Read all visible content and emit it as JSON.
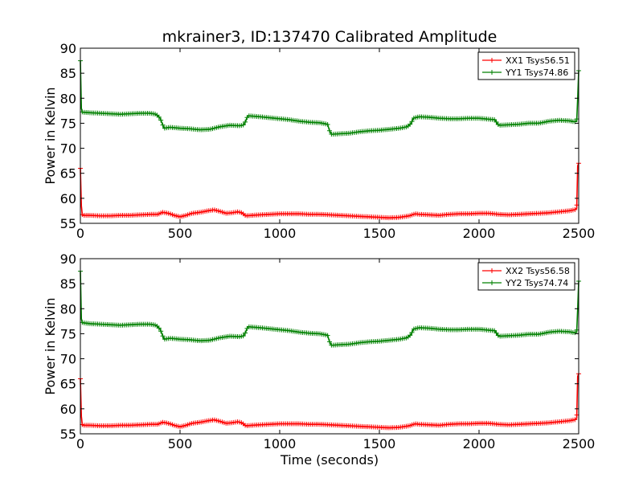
{
  "chart_data": [
    {
      "type": "line",
      "title": "mkrainer3, ID:137470 Calibrated Amplitude",
      "xlabel": "",
      "ylabel": "Power in Kelvin",
      "xlim": [
        0,
        2500
      ],
      "ylim": [
        55,
        90
      ],
      "xticks": [
        0,
        500,
        1000,
        1500,
        2000,
        2500
      ],
      "yticks": [
        55,
        60,
        65,
        70,
        75,
        80,
        85,
        90
      ],
      "legend_position": "top-right",
      "series": [
        {
          "name": "XX1 Tsys56.51",
          "color": "#ff0000",
          "marker": "plus",
          "x": [
            0,
            5,
            10,
            50,
            100,
            150,
            200,
            250,
            300,
            350,
            390,
            410,
            430,
            450,
            470,
            500,
            530,
            560,
            600,
            640,
            670,
            700,
            730,
            760,
            790,
            810,
            830,
            860,
            900,
            950,
            1000,
            1050,
            1100,
            1150,
            1200,
            1250,
            1300,
            1350,
            1400,
            1450,
            1500,
            1550,
            1600,
            1650,
            1680,
            1700,
            1750,
            1800,
            1850,
            1900,
            1950,
            2000,
            2050,
            2100,
            2150,
            2200,
            2250,
            2300,
            2350,
            2400,
            2450,
            2480,
            2490,
            2495,
            2500
          ],
          "y": [
            66.0,
            58.5,
            56.6,
            56.6,
            56.5,
            56.5,
            56.6,
            56.6,
            56.7,
            56.8,
            56.8,
            57.2,
            57.1,
            56.9,
            56.6,
            56.3,
            56.6,
            57.0,
            57.2,
            57.5,
            57.7,
            57.4,
            57.0,
            57.1,
            57.3,
            57.1,
            56.5,
            56.6,
            56.7,
            56.8,
            56.9,
            56.9,
            56.9,
            56.8,
            56.8,
            56.7,
            56.6,
            56.5,
            56.4,
            56.3,
            56.2,
            56.1,
            56.2,
            56.5,
            56.9,
            56.8,
            56.7,
            56.6,
            56.8,
            56.9,
            56.9,
            57.0,
            57.0,
            56.8,
            56.7,
            56.8,
            56.9,
            57.0,
            57.1,
            57.3,
            57.5,
            57.7,
            58.0,
            66.5,
            67.0
          ]
        },
        {
          "name": "YY1 Tsys74.86",
          "color": "#008000",
          "marker": "plus",
          "x": [
            0,
            5,
            10,
            50,
            100,
            150,
            200,
            250,
            300,
            350,
            380,
            400,
            410,
            420,
            450,
            500,
            550,
            600,
            650,
            700,
            750,
            800,
            820,
            830,
            840,
            900,
            950,
            1000,
            1050,
            1100,
            1150,
            1200,
            1240,
            1250,
            1260,
            1300,
            1350,
            1400,
            1450,
            1500,
            1550,
            1600,
            1640,
            1660,
            1670,
            1700,
            1750,
            1800,
            1850,
            1900,
            1950,
            2000,
            2050,
            2080,
            2090,
            2100,
            2150,
            2200,
            2250,
            2300,
            2350,
            2400,
            2450,
            2480,
            2490,
            2495,
            2500
          ],
          "y": [
            87.5,
            78.0,
            77.2,
            77.1,
            77.0,
            76.9,
            76.8,
            76.9,
            77.0,
            77.0,
            76.8,
            76.0,
            75.0,
            74.0,
            74.2,
            74.0,
            73.9,
            73.7,
            73.8,
            74.3,
            74.6,
            74.5,
            74.7,
            75.5,
            76.5,
            76.3,
            76.1,
            75.9,
            75.7,
            75.4,
            75.2,
            75.1,
            74.8,
            73.5,
            72.8,
            72.9,
            73.0,
            73.3,
            73.5,
            73.6,
            73.8,
            74.0,
            74.3,
            75.0,
            76.0,
            76.3,
            76.2,
            76.0,
            75.9,
            75.9,
            76.0,
            76.0,
            75.8,
            75.7,
            75.0,
            74.6,
            74.7,
            74.8,
            75.0,
            75.0,
            75.4,
            75.6,
            75.5,
            75.3,
            75.5,
            80.0,
            85.5
          ]
        }
      ]
    },
    {
      "type": "line",
      "title": "",
      "xlabel": "Time (seconds)",
      "ylabel": "Power in Kelvin",
      "xlim": [
        0,
        2500
      ],
      "ylim": [
        55,
        90
      ],
      "xticks": [
        0,
        500,
        1000,
        1500,
        2000,
        2500
      ],
      "yticks": [
        55,
        60,
        65,
        70,
        75,
        80,
        85,
        90
      ],
      "legend_position": "top-right",
      "series": [
        {
          "name": "XX2 Tsys56.58",
          "color": "#ff0000",
          "marker": "plus",
          "x": [
            0,
            5,
            10,
            50,
            100,
            150,
            200,
            250,
            300,
            350,
            390,
            410,
            430,
            450,
            470,
            500,
            530,
            560,
            600,
            640,
            670,
            700,
            730,
            760,
            790,
            810,
            830,
            860,
            900,
            950,
            1000,
            1050,
            1100,
            1150,
            1200,
            1250,
            1300,
            1350,
            1400,
            1450,
            1500,
            1550,
            1600,
            1650,
            1680,
            1700,
            1750,
            1800,
            1850,
            1900,
            1950,
            2000,
            2050,
            2100,
            2150,
            2200,
            2250,
            2300,
            2350,
            2400,
            2450,
            2480,
            2490,
            2495,
            2500
          ],
          "y": [
            66.0,
            58.5,
            56.7,
            56.7,
            56.6,
            56.6,
            56.7,
            56.7,
            56.8,
            56.9,
            56.9,
            57.3,
            57.2,
            57.0,
            56.7,
            56.4,
            56.7,
            57.1,
            57.3,
            57.6,
            57.8,
            57.5,
            57.1,
            57.2,
            57.4,
            57.2,
            56.6,
            56.7,
            56.8,
            56.9,
            57.0,
            57.0,
            57.0,
            56.9,
            56.9,
            56.8,
            56.7,
            56.6,
            56.5,
            56.4,
            56.3,
            56.2,
            56.3,
            56.6,
            57.0,
            56.9,
            56.8,
            56.7,
            56.9,
            57.0,
            57.0,
            57.1,
            57.1,
            56.9,
            56.8,
            56.9,
            57.0,
            57.1,
            57.2,
            57.4,
            57.6,
            57.8,
            58.1,
            66.5,
            67.0
          ]
        },
        {
          "name": "YY2 Tsys74.74",
          "color": "#008000",
          "marker": "plus",
          "x": [
            0,
            5,
            10,
            50,
            100,
            150,
            200,
            250,
            300,
            350,
            380,
            400,
            410,
            420,
            450,
            500,
            550,
            600,
            650,
            700,
            750,
            800,
            820,
            830,
            840,
            900,
            950,
            1000,
            1050,
            1100,
            1150,
            1200,
            1240,
            1250,
            1260,
            1300,
            1350,
            1400,
            1450,
            1500,
            1550,
            1600,
            1640,
            1660,
            1670,
            1700,
            1750,
            1800,
            1850,
            1900,
            1950,
            2000,
            2050,
            2080,
            2090,
            2100,
            2150,
            2200,
            2250,
            2300,
            2350,
            2400,
            2450,
            2480,
            2490,
            2495,
            2500
          ],
          "y": [
            87.5,
            78.0,
            77.2,
            77.0,
            76.9,
            76.8,
            76.7,
            76.8,
            76.9,
            76.9,
            76.7,
            75.9,
            74.9,
            73.9,
            74.1,
            73.9,
            73.8,
            73.6,
            73.7,
            74.2,
            74.5,
            74.4,
            74.6,
            75.4,
            76.4,
            76.2,
            76.0,
            75.8,
            75.6,
            75.3,
            75.1,
            75.0,
            74.7,
            73.4,
            72.7,
            72.8,
            72.9,
            73.2,
            73.4,
            73.5,
            73.7,
            73.9,
            74.2,
            74.9,
            75.9,
            76.2,
            76.1,
            75.9,
            75.8,
            75.8,
            75.9,
            75.9,
            75.7,
            75.6,
            74.9,
            74.5,
            74.6,
            74.7,
            74.9,
            74.9,
            75.3,
            75.5,
            75.4,
            75.2,
            75.4,
            80.0,
            85.5
          ]
        }
      ]
    }
  ]
}
